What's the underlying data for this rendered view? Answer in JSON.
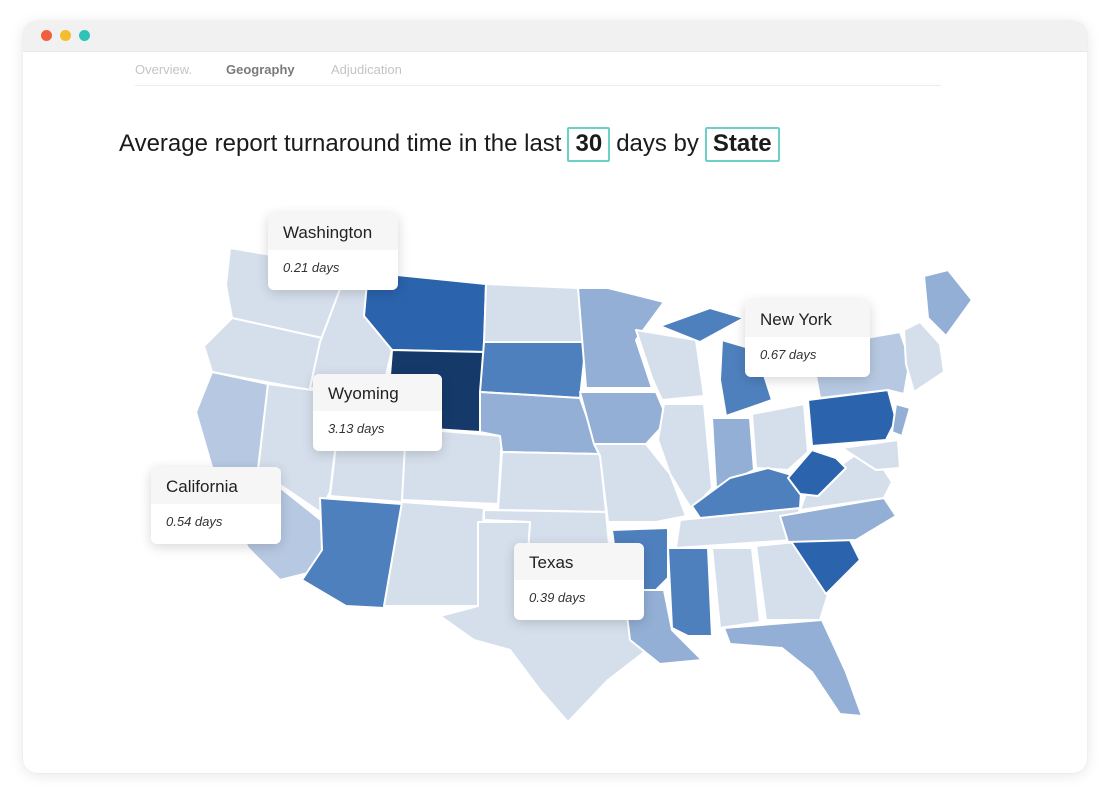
{
  "window": {
    "traffic_lights": [
      "red",
      "yellow",
      "green"
    ]
  },
  "tabs": [
    {
      "label": "Overview.",
      "active": false
    },
    {
      "label": "Geography",
      "active": true
    },
    {
      "label": "Adjudication",
      "active": false
    }
  ],
  "headline": {
    "prefix": "Average report turnaround time in the last",
    "days_value": "30",
    "middle": "days by",
    "group_by": "State"
  },
  "colors": {
    "accent": "#6dd0c7",
    "scale": [
      "#d5dfec",
      "#b7c9e2",
      "#93afd5",
      "#4f80be",
      "#2b63ad",
      "#153a6a"
    ]
  },
  "tooltips": [
    {
      "state": "Washington",
      "value": "0.21 days"
    },
    {
      "state": "New York",
      "value": "0.67 days"
    },
    {
      "state": "Wyoming",
      "value": "3.13 days"
    },
    {
      "state": "California",
      "value": "0.54 days"
    },
    {
      "state": "Texas",
      "value": "0.39 days"
    }
  ]
}
